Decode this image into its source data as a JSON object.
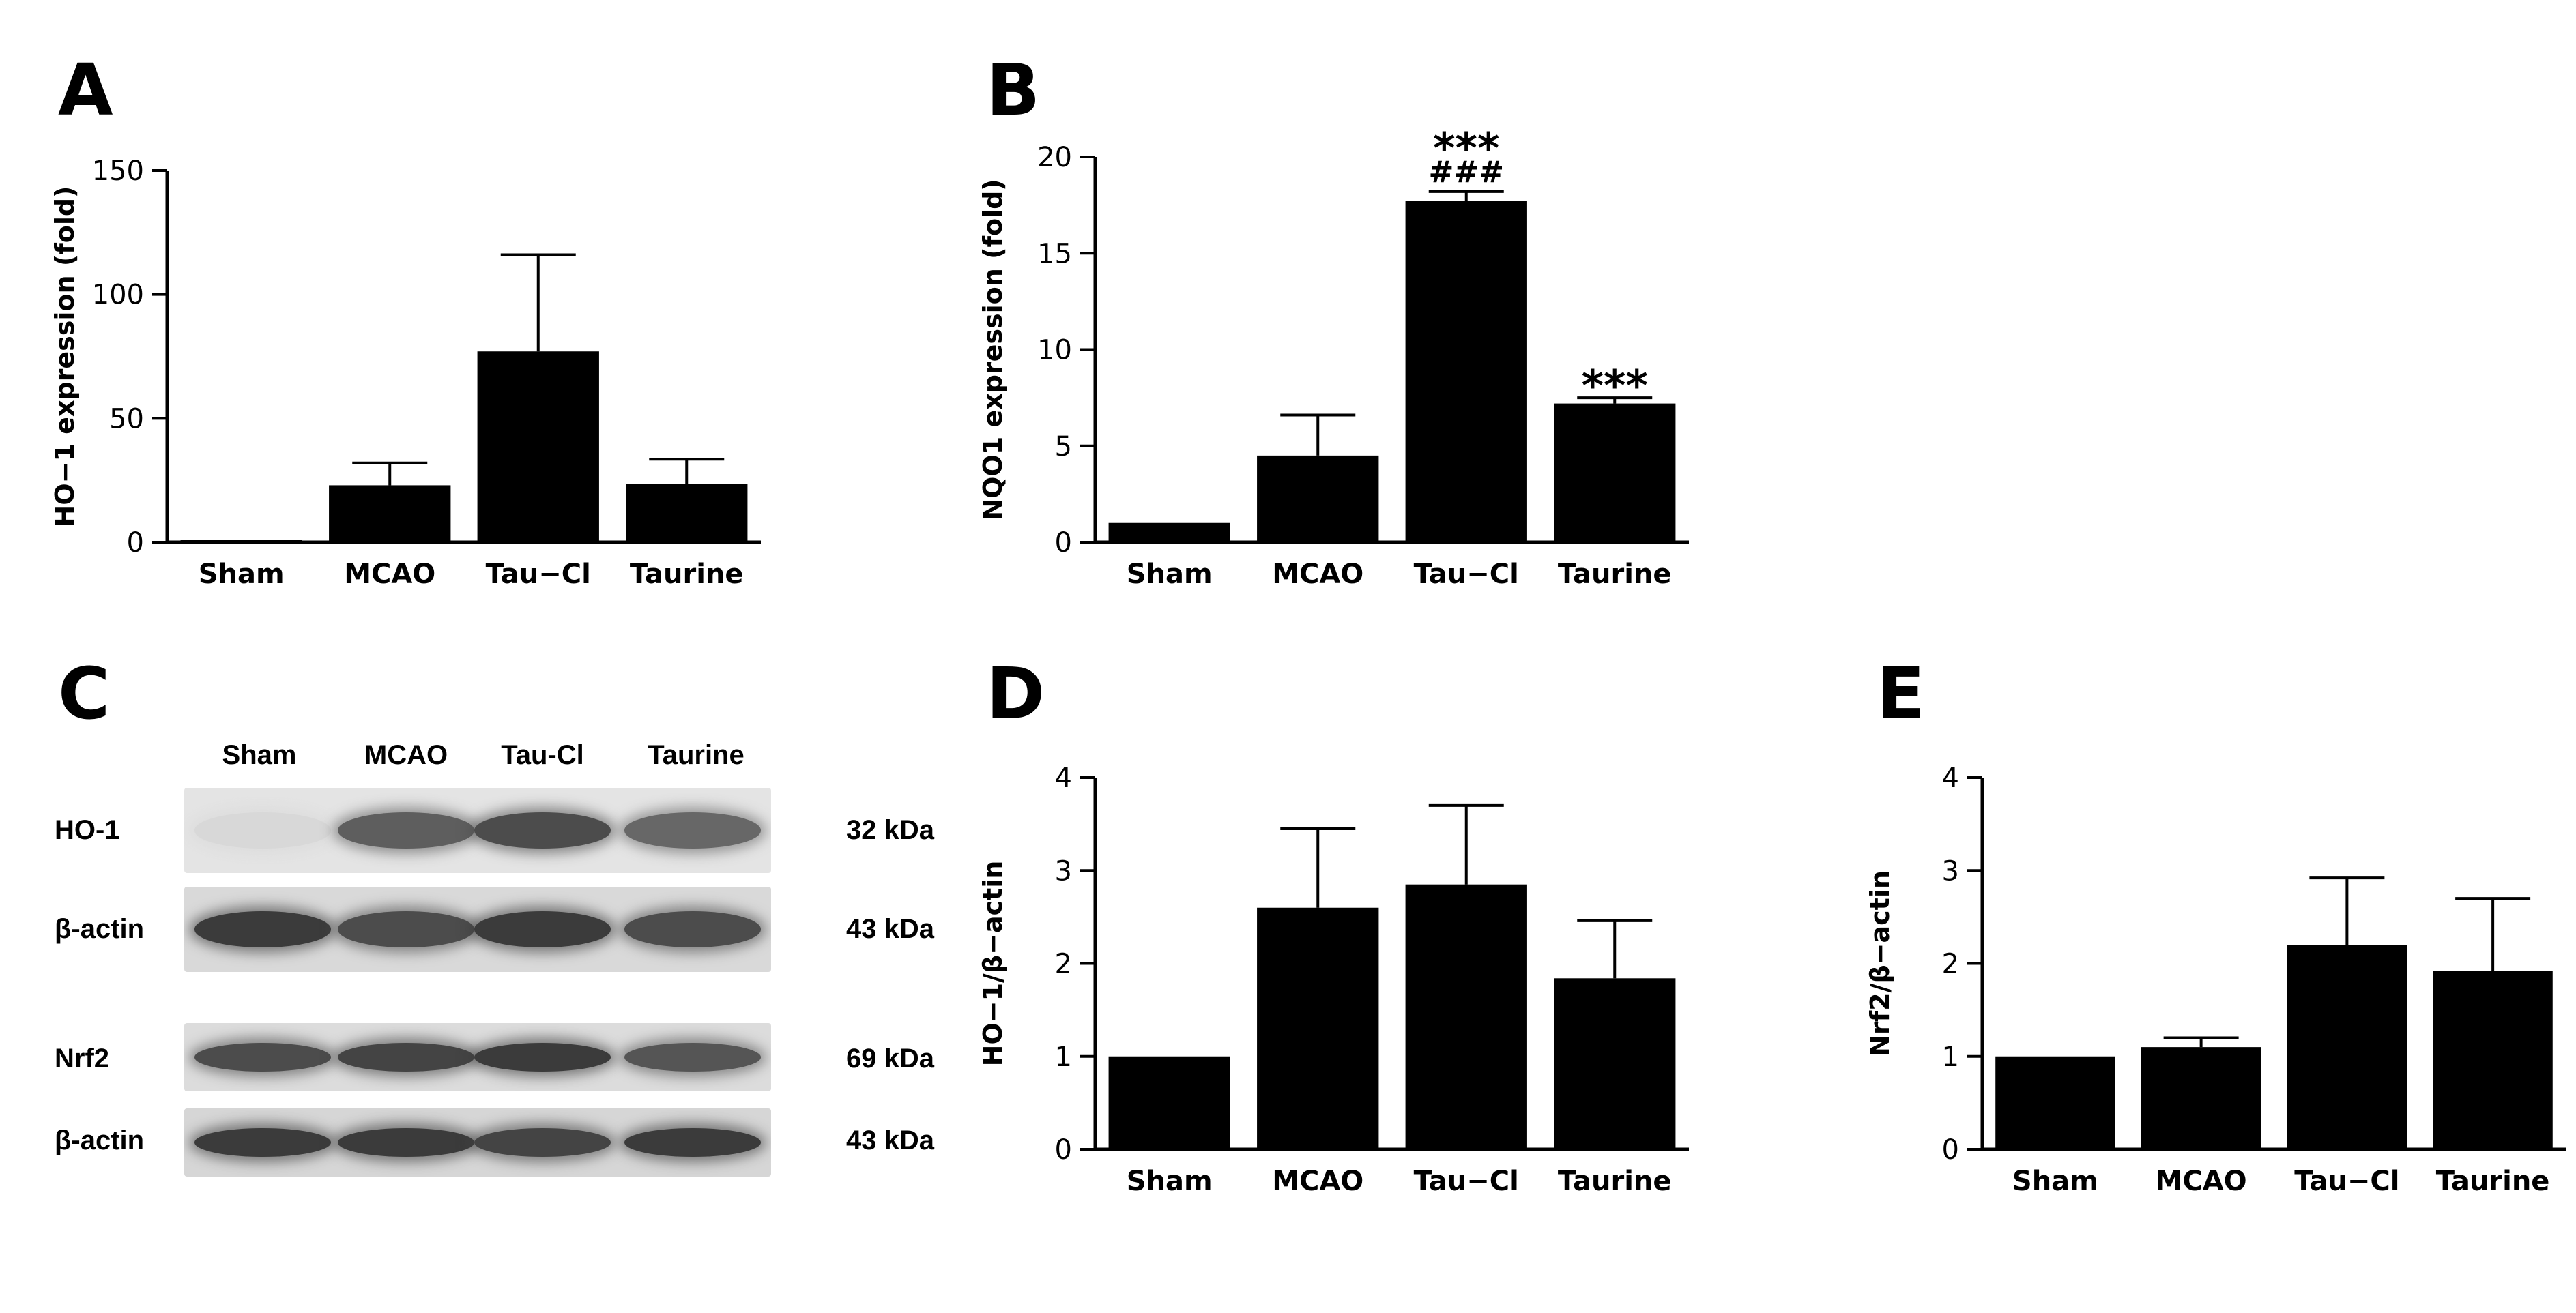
{
  "panels": {
    "A": "A",
    "B": "B",
    "C": "C",
    "D": "D",
    "E": "E"
  },
  "blot": {
    "lanes": [
      "Sham",
      "MCAO",
      "Tau-Cl",
      "Taurine"
    ],
    "rows": [
      {
        "label": "HO-1",
        "kda": "32 kDa"
      },
      {
        "label": "β-actin",
        "kda": "43 kDa"
      },
      {
        "label": "Nrf2",
        "kda": "69 kDa"
      },
      {
        "label": "β-actin",
        "kda": "43 kDa"
      }
    ],
    "band_intensity": [
      [
        0.05,
        0.75,
        0.85,
        0.7
      ],
      [
        0.95,
        0.85,
        0.95,
        0.85
      ],
      [
        0.85,
        0.9,
        0.95,
        0.8
      ],
      [
        0.95,
        0.95,
        0.9,
        0.95
      ]
    ]
  },
  "chart_data": [
    {
      "id": "A",
      "type": "bar",
      "categories": [
        "Sham",
        "MCAO",
        "Tau−Cl",
        "Taurine"
      ],
      "values": [
        1,
        23,
        77,
        23.5
      ],
      "errors": [
        0,
        9,
        39,
        10
      ],
      "annotations": [
        "",
        "",
        "",
        ""
      ],
      "ylabel": "HO−1 expression (fold)",
      "ylim": [
        0,
        150
      ],
      "yticks": [
        0,
        50,
        100,
        150
      ],
      "ytick_labels": [
        "0",
        "50",
        "100",
        "150"
      ],
      "bar_color": "#000000"
    },
    {
      "id": "B",
      "type": "bar",
      "categories": [
        "Sham",
        "MCAO",
        "Tau−Cl",
        "Taurine"
      ],
      "values": [
        1,
        4.5,
        17.7,
        7.2
      ],
      "errors": [
        0,
        2.1,
        0.5,
        0.3
      ],
      "annotations": [
        "",
        "",
        "***\n###",
        "***"
      ],
      "ylabel": "NQO1 expression (fold)",
      "ylim": [
        0,
        20
      ],
      "yticks": [
        0,
        5,
        10,
        15,
        20
      ],
      "ytick_labels": [
        "0",
        "5",
        "10",
        "15",
        "20"
      ],
      "bar_color": "#000000"
    },
    {
      "id": "D",
      "type": "bar",
      "categories": [
        "Sham",
        "MCAO",
        "Tau−Cl",
        "Taurine"
      ],
      "values": [
        1,
        2.6,
        2.85,
        1.84
      ],
      "errors": [
        0,
        0.85,
        0.85,
        0.62
      ],
      "annotations": [
        "",
        "",
        "",
        ""
      ],
      "ylabel": "HO−1/β−actin",
      "ylim": [
        0,
        4
      ],
      "yticks": [
        0,
        1,
        2,
        3,
        4
      ],
      "ytick_labels": [
        "0",
        "1",
        "2",
        "3",
        "4"
      ],
      "bar_color": "#000000"
    },
    {
      "id": "E",
      "type": "bar",
      "categories": [
        "Sham",
        "MCAO",
        "Tau−Cl",
        "Taurine"
      ],
      "values": [
        1,
        1.1,
        2.2,
        1.92
      ],
      "errors": [
        0,
        0.1,
        0.72,
        0.78
      ],
      "annotations": [
        "",
        "",
        "",
        ""
      ],
      "ylabel": "Nrf2/β−actin",
      "ylim": [
        0,
        4
      ],
      "yticks": [
        0,
        1,
        2,
        3,
        4
      ],
      "ytick_labels": [
        "0",
        "1",
        "2",
        "3",
        "4"
      ],
      "bar_color": "#000000"
    }
  ]
}
